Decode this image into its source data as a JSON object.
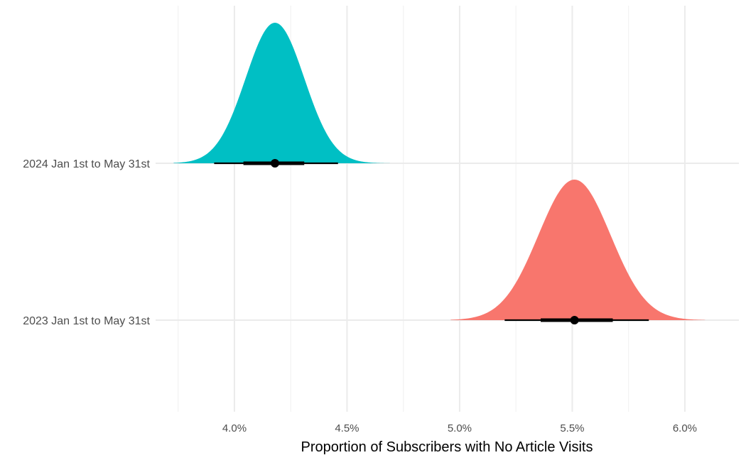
{
  "chart_data": {
    "type": "halfeye",
    "title": "",
    "xlabel": "Proportion of Subscribers with No Article Visits",
    "ylabel": "",
    "xlim": [
      0.0365,
      0.0624
    ],
    "x_ticks": [
      0.04,
      0.045,
      0.05,
      0.055,
      0.06
    ],
    "x_tick_labels": [
      "4.0%",
      "4.5%",
      "5.0%",
      "5.5%",
      "6.0%"
    ],
    "grid": true,
    "legend": "none",
    "categories": [
      "2024 Jan 1st to May 31st",
      "2023 Jan 1st to May 31st"
    ],
    "series": [
      {
        "category": "2024 Jan 1st to May 31st",
        "color": "#00BFC4",
        "median": 0.0418,
        "sd": 0.0013,
        "density_range": [
          0.0373,
          0.0469
        ],
        "interval_66": [
          0.0404,
          0.0431
        ],
        "interval_95": [
          0.0391,
          0.0446
        ]
      },
      {
        "category": "2023 Jan 1st to May 31st",
        "color": "#F8766D",
        "median": 0.0551,
        "sd": 0.0016,
        "density_range": [
          0.0496,
          0.0609
        ],
        "interval_66": [
          0.0536,
          0.0568
        ],
        "interval_95": [
          0.052,
          0.0584
        ]
      }
    ]
  }
}
